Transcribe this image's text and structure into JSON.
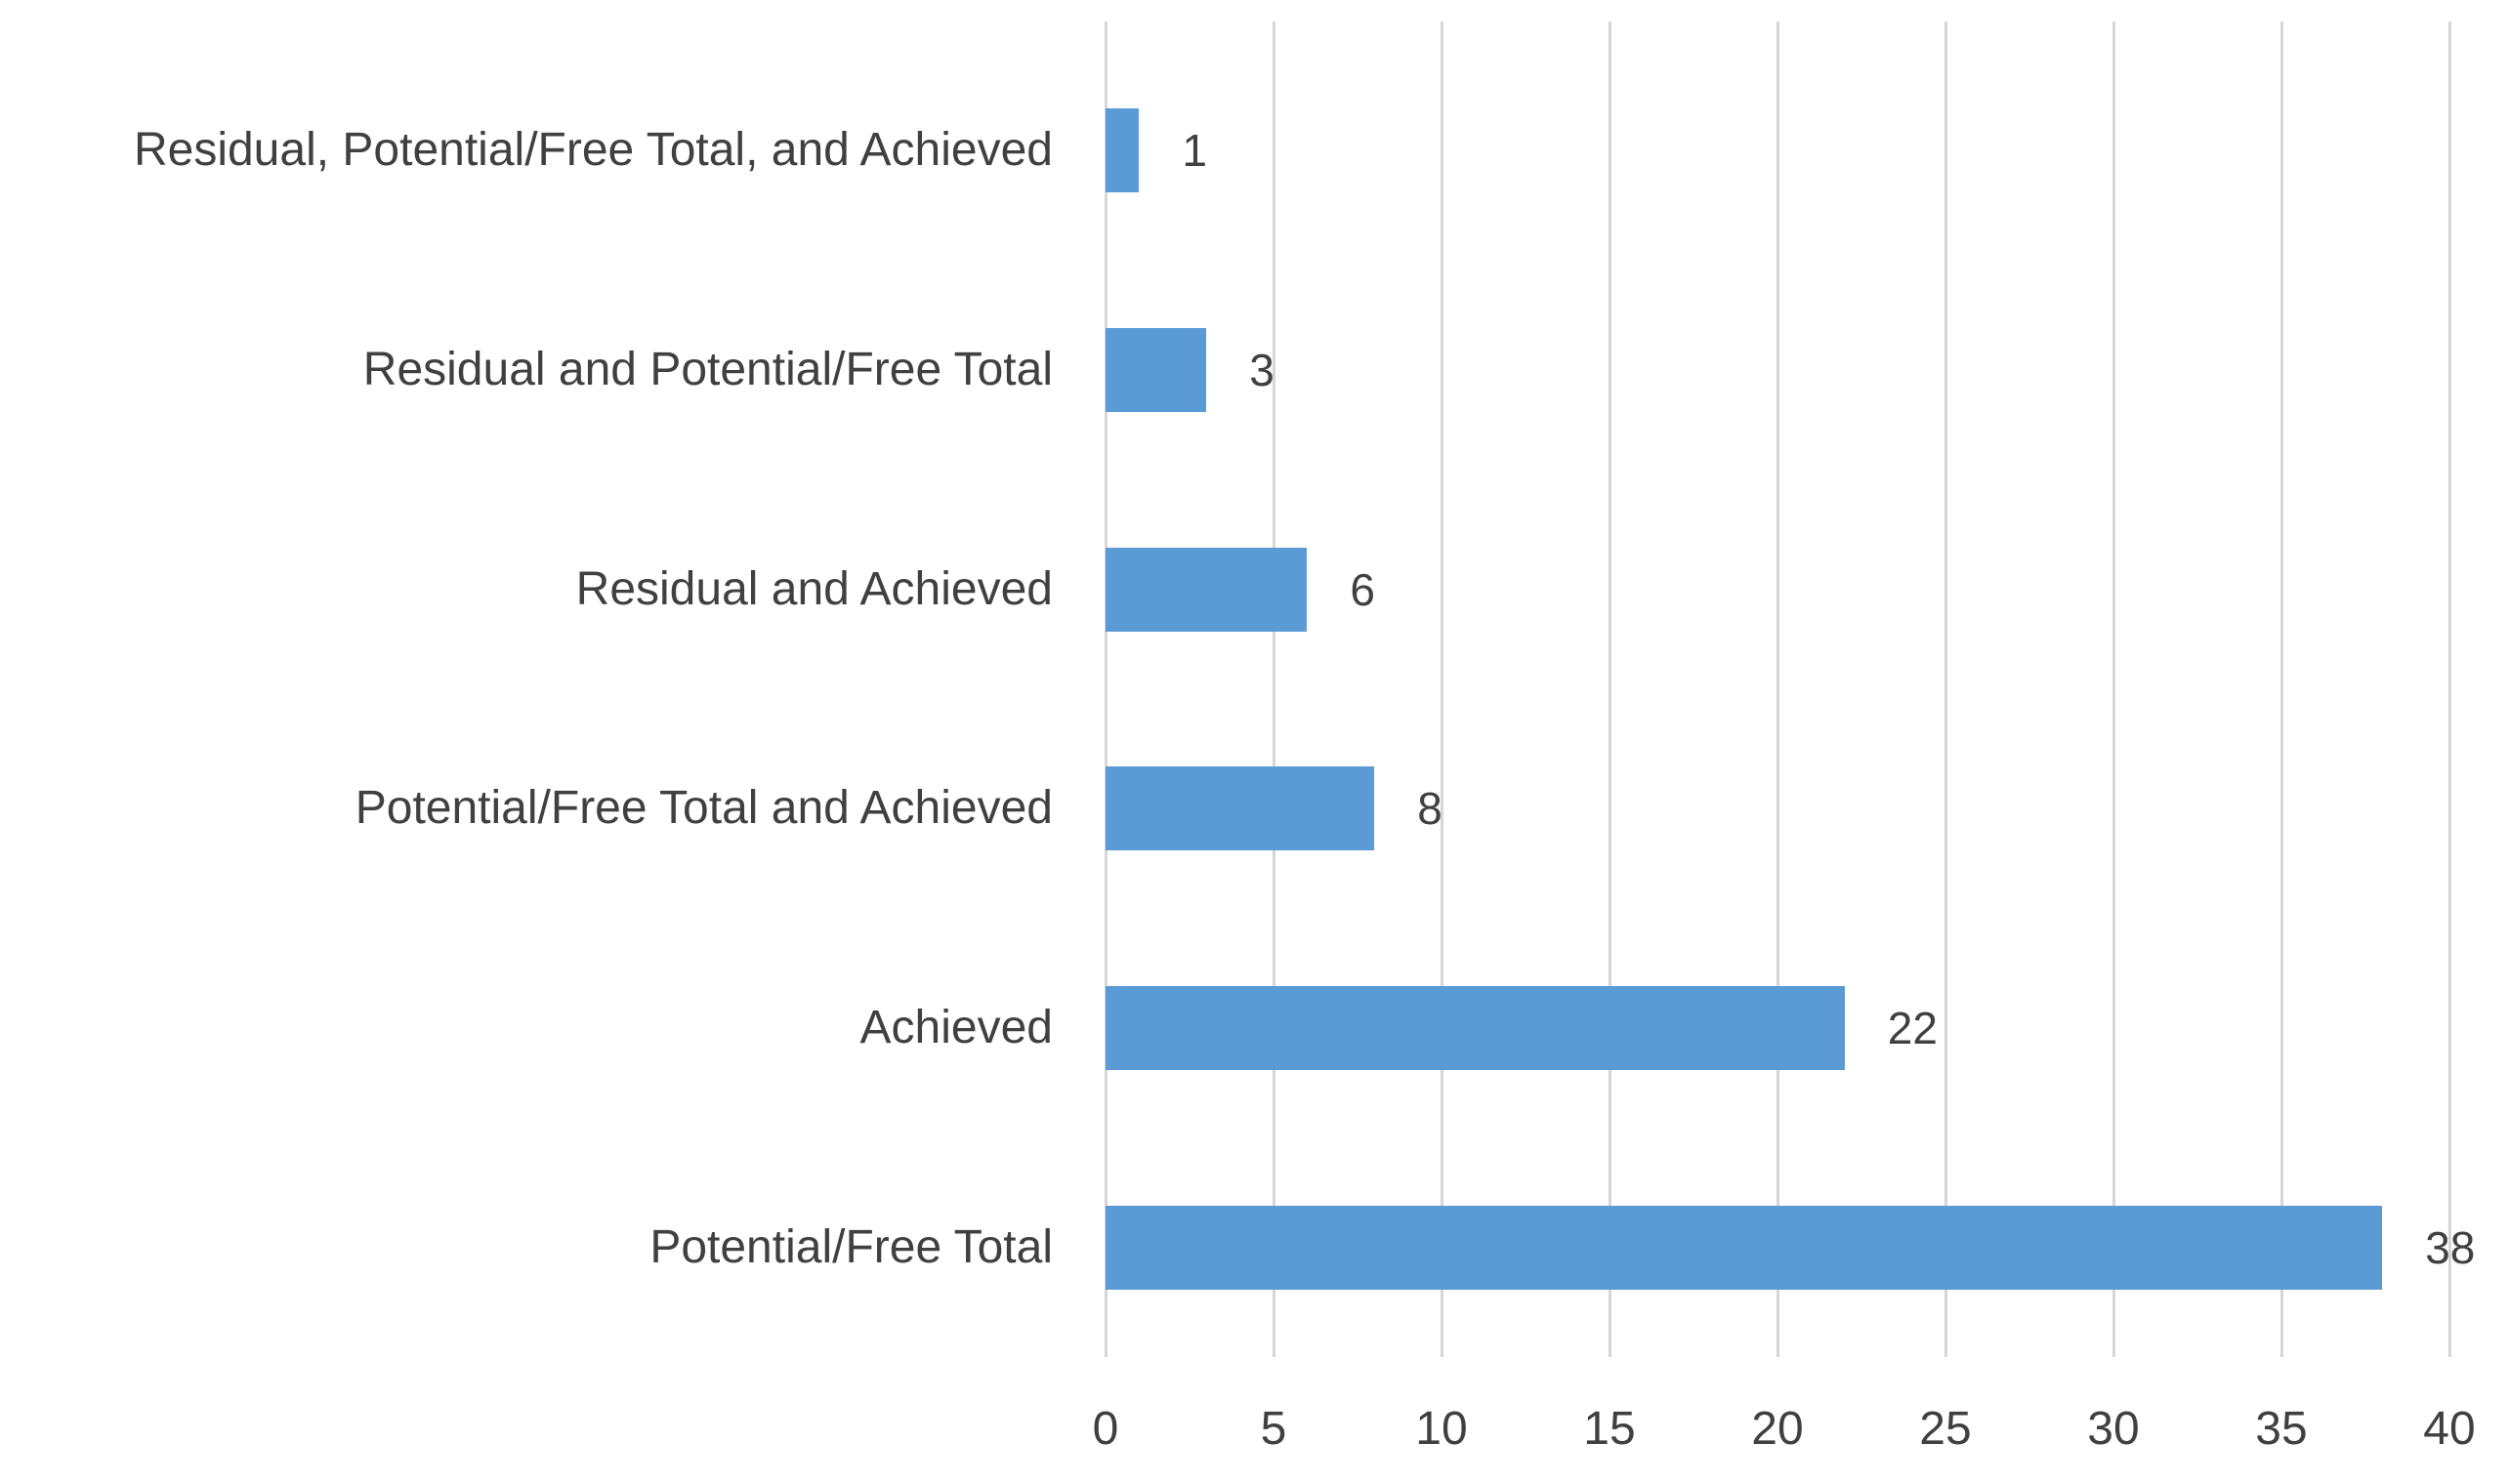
{
  "chart_data": {
    "type": "bar",
    "orientation": "horizontal",
    "title": "",
    "xlabel": "",
    "ylabel": "",
    "categories": [
      "Residual, Potential/Free Total, and Achieved",
      "Residual and Potential/Free Total",
      "Residual and Achieved",
      "Potential/Free Total and Achieved",
      "Achieved",
      "Potential/Free Total"
    ],
    "values": [
      1,
      3,
      6,
      8,
      22,
      38
    ],
    "data_labels": [
      "1",
      "3",
      "6",
      "8",
      "22",
      "38"
    ],
    "xlim": [
      0,
      40
    ],
    "xticks": [
      0,
      5,
      10,
      15,
      20,
      25,
      30,
      35,
      40
    ],
    "grid": true,
    "legend": false,
    "colors": {
      "bar": "#5B9BD5",
      "gridline": "#D6D6D6",
      "text": "#404040",
      "background": "#FFFFFF"
    }
  }
}
